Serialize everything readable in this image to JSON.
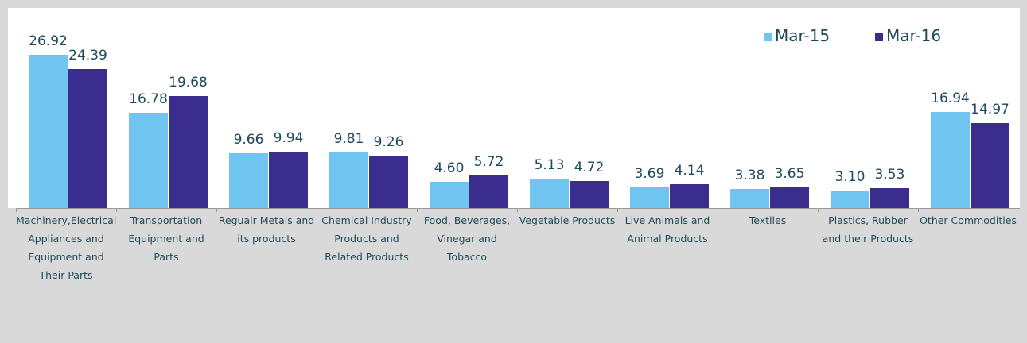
{
  "chart_data": {
    "type": "bar",
    "categories": [
      "Machinery,Electrical Appliances and Equipment and Their Parts",
      "Transportation Equipment and Parts",
      "Regualr Metals and its products",
      "Chemical Industry Products and Related Products",
      "Food, Beverages, Vinegar and Tobacco",
      "Vegetable Products",
      "Live Animals and Animal Products",
      "Textiles",
      "Plastics, Rubber and their Products",
      "Other Commodities"
    ],
    "series": [
      {
        "name": "Mar-15",
        "color": "#6fc5ef",
        "values": [
          26.92,
          16.78,
          9.66,
          9.81,
          4.6,
          5.13,
          3.69,
          3.38,
          3.1,
          16.94
        ],
        "value_labels": [
          "26.92",
          "16.78",
          "9.66",
          "9.81",
          "4.60",
          "5.13",
          "3.69",
          "3.38",
          "3.10",
          "16.94"
        ]
      },
      {
        "name": "Mar-16",
        "color": "#3a2d8e",
        "values": [
          24.39,
          19.68,
          9.94,
          9.26,
          5.72,
          4.72,
          4.14,
          3.65,
          3.53,
          14.97
        ],
        "value_labels": [
          "24.39",
          "19.68",
          "9.94",
          "9.26",
          "5.72",
          "4.72",
          "4.14",
          "3.65",
          "3.53",
          "14.97"
        ]
      }
    ],
    "legend": "top-right"
  }
}
